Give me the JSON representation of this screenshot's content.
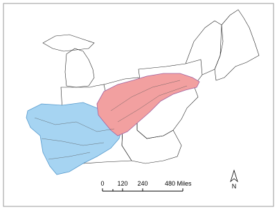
{
  "scale_bar": {
    "labels": [
      "0",
      "120",
      "240",
      "480 Miles"
    ]
  },
  "north_arrow": {
    "label": "N"
  }
}
